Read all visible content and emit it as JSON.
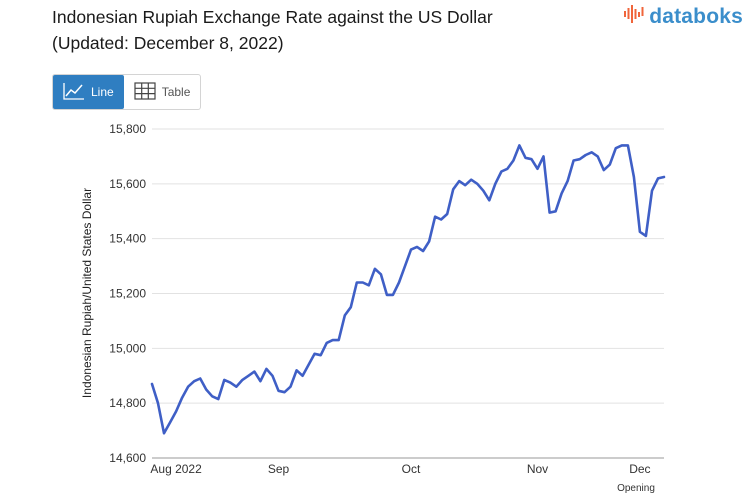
{
  "header": {
    "title_line1": "Indonesian Rupiah Exchange Rate against the US Dollar",
    "title_line2": "(Updated: December 8, 2022)"
  },
  "brand": {
    "name": "databoks",
    "color": "#3b8ecb",
    "icon": "bar-mark-icon"
  },
  "view_toggle": {
    "line_label": "Line",
    "table_label": "Table",
    "active": "line",
    "active_color": "#2f7ec1"
  },
  "chart_data": {
    "type": "line",
    "title": "Indonesian Rupiah Exchange Rate against the US Dollar",
    "ylabel": "Indonesian Rupiah/United States Dollar",
    "xlabel": "",
    "ylim": [
      14600,
      15800
    ],
    "yticks": [
      "15,800",
      "15,600",
      "15,400",
      "15,200",
      "15,000",
      "14,800",
      "14,600"
    ],
    "ytick_values": [
      15800,
      15600,
      15400,
      15200,
      15000,
      14800,
      14600
    ],
    "xlim": [
      0,
      85
    ],
    "xtick_labels": [
      "Aug 2022",
      "Sep",
      "Oct",
      "Nov",
      "Dec"
    ],
    "xtick_positions": [
      4,
      21,
      43,
      64,
      81
    ],
    "annotation": "Opening",
    "grid": true,
    "line_color": "#3f5fc6",
    "series": [
      {
        "x": [
          0,
          1,
          2,
          3,
          4,
          5,
          6,
          7,
          8,
          9,
          10,
          11,
          12,
          13,
          14,
          15,
          16,
          17,
          18,
          19,
          20,
          21,
          22,
          23,
          24,
          25,
          26,
          27,
          28,
          29,
          30,
          31,
          32,
          33,
          34,
          35,
          36,
          37,
          38,
          39,
          40,
          41,
          42,
          43,
          44,
          45,
          46,
          47,
          48,
          49,
          50,
          51,
          52,
          53,
          54,
          55,
          56,
          57,
          58,
          59,
          60,
          61,
          62,
          63,
          64,
          65,
          66,
          67,
          68,
          69,
          70,
          71,
          72,
          73,
          74,
          75,
          76,
          77,
          78,
          79,
          80,
          81,
          82,
          83,
          84,
          85
        ],
        "values": [
          14870,
          14800,
          14690,
          14730,
          14770,
          14820,
          14860,
          14880,
          14890,
          14850,
          14825,
          14815,
          14885,
          14875,
          14860,
          14885,
          14900,
          14915,
          14880,
          14925,
          14900,
          14845,
          14840,
          14860,
          14920,
          14900,
          14940,
          14980,
          14975,
          15020,
          15030,
          15030,
          15120,
          15150,
          15240,
          15240,
          15230,
          15290,
          15270,
          15195,
          15195,
          15240,
          15300,
          15360,
          15370,
          15355,
          15390,
          15480,
          15470,
          15490,
          15580,
          15610,
          15595,
          15615,
          15600,
          15575,
          15540,
          15600,
          15645,
          15655,
          15685,
          15740,
          15695,
          15690,
          15655,
          15700,
          15495,
          15500,
          15565,
          15610,
          15685,
          15690,
          15705,
          15715,
          15700,
          15650,
          15670,
          15730,
          15740,
          15740,
          15625,
          15425,
          15410,
          15575,
          15620,
          15625
        ]
      }
    ]
  }
}
